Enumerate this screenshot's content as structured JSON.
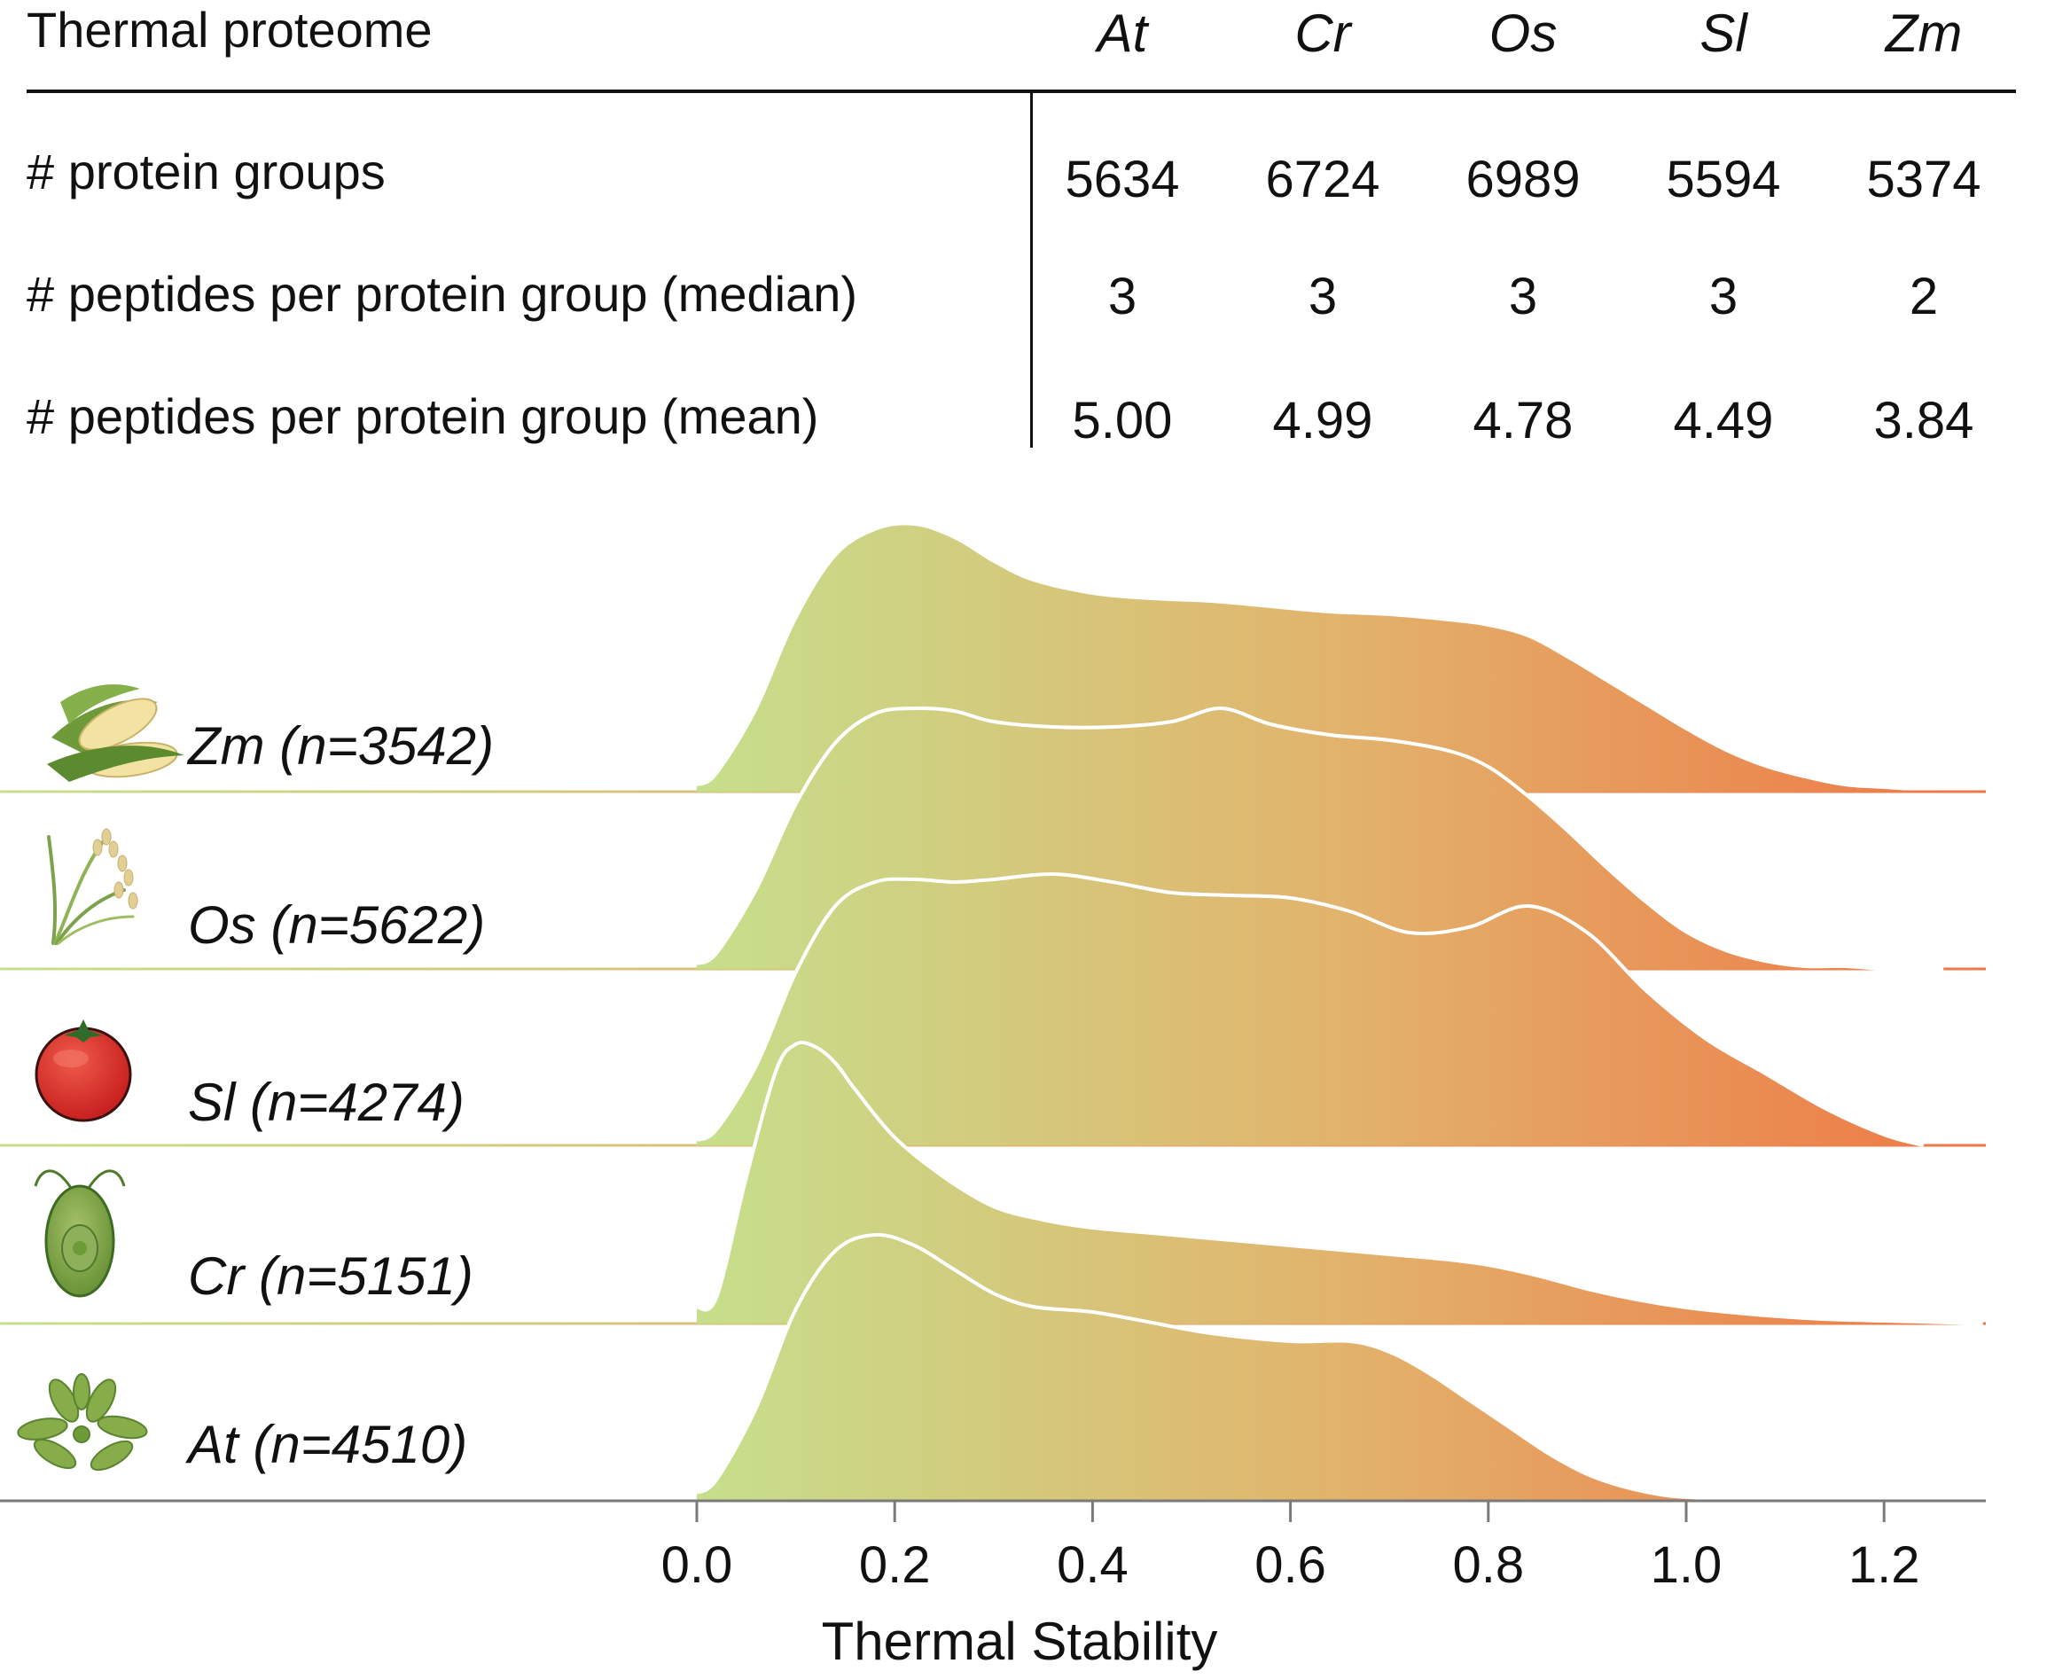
{
  "table": {
    "title": "Thermal proteome",
    "species": [
      "At",
      "Cr",
      "Os",
      "Sl",
      "Zm"
    ],
    "rows": [
      {
        "label": "# protein groups",
        "values": [
          "5634",
          "6724",
          "6989",
          "5594",
          "5374"
        ]
      },
      {
        "label": "# peptides per protein group (median)",
        "values": [
          "3",
          "3",
          "3",
          "3",
          "2"
        ]
      },
      {
        "label": "# peptides per protein group (mean)",
        "values": [
          "5.00",
          "4.99",
          "4.78",
          "4.49",
          "3.84"
        ]
      }
    ]
  },
  "chart_data": {
    "type": "area",
    "subtype": "ridgeline density",
    "xlabel": "Thermal Stability",
    "xlim": [
      0.0,
      1.3
    ],
    "xticks": [
      "0.0",
      "0.2",
      "0.4",
      "0.6",
      "0.8",
      "1.0",
      "1.2"
    ],
    "gradient": {
      "from": "#c6df8c",
      "mid": "#e2b36c",
      "to": "#ee7745"
    },
    "outline_color": "#ffffff",
    "series": [
      {
        "name": "Zm (n=3542)",
        "icon": "corn-icon",
        "x": [
          0.0,
          0.02,
          0.06,
          0.1,
          0.14,
          0.18,
          0.22,
          0.26,
          0.3,
          0.34,
          0.4,
          0.46,
          0.52,
          0.58,
          0.64,
          0.7,
          0.76,
          0.8,
          0.84,
          0.88,
          0.92,
          0.96,
          1.0,
          1.04,
          1.08,
          1.12,
          1.16,
          1.2,
          1.24
        ],
        "y": [
          0.02,
          0.06,
          0.3,
          0.64,
          0.88,
          0.98,
          1.0,
          0.95,
          0.86,
          0.79,
          0.74,
          0.72,
          0.71,
          0.69,
          0.67,
          0.66,
          0.64,
          0.62,
          0.58,
          0.5,
          0.41,
          0.32,
          0.23,
          0.15,
          0.09,
          0.05,
          0.02,
          0.01,
          0.0
        ]
      },
      {
        "name": "Os (n=5622)",
        "icon": "rice-icon",
        "x": [
          0.0,
          0.02,
          0.06,
          0.1,
          0.14,
          0.18,
          0.22,
          0.26,
          0.3,
          0.36,
          0.42,
          0.48,
          0.53,
          0.58,
          0.64,
          0.7,
          0.76,
          0.8,
          0.84,
          0.88,
          0.92,
          0.96,
          1.0,
          1.04,
          1.08,
          1.12,
          1.16,
          1.2,
          1.24,
          1.26
        ],
        "y": [
          0.02,
          0.06,
          0.3,
          0.62,
          0.85,
          0.96,
          0.98,
          0.97,
          0.93,
          0.91,
          0.91,
          0.93,
          0.98,
          0.92,
          0.88,
          0.86,
          0.82,
          0.76,
          0.65,
          0.52,
          0.38,
          0.25,
          0.14,
          0.07,
          0.03,
          0.01,
          0.01,
          0.0,
          0.0,
          0.0
        ]
      },
      {
        "name": "Sl (n=4274)",
        "icon": "tomato-icon",
        "x": [
          0.0,
          0.02,
          0.06,
          0.1,
          0.14,
          0.18,
          0.22,
          0.26,
          0.3,
          0.36,
          0.42,
          0.48,
          0.54,
          0.6,
          0.66,
          0.72,
          0.78,
          0.84,
          0.9,
          0.96,
          1.02,
          1.08,
          1.14,
          1.2,
          1.24
        ],
        "y": [
          0.02,
          0.06,
          0.3,
          0.65,
          0.9,
          0.99,
          1.0,
          0.99,
          1.0,
          1.02,
          0.99,
          0.95,
          0.94,
          0.93,
          0.88,
          0.8,
          0.82,
          0.9,
          0.8,
          0.58,
          0.4,
          0.27,
          0.14,
          0.04,
          0.0
        ]
      },
      {
        "name": "Cr (n=5151)",
        "icon": "chlamydomonas-icon",
        "x": [
          0.0,
          0.02,
          0.05,
          0.08,
          0.1,
          0.12,
          0.14,
          0.16,
          0.2,
          0.25,
          0.3,
          0.35,
          0.4,
          0.46,
          0.52,
          0.58,
          0.64,
          0.7,
          0.76,
          0.8,
          0.85,
          0.9,
          0.95,
          1.0,
          1.05,
          1.1,
          1.15,
          1.2,
          1.25,
          1.3
        ],
        "y": [
          0.06,
          0.1,
          0.55,
          0.95,
          1.05,
          1.04,
          0.98,
          0.88,
          0.7,
          0.55,
          0.44,
          0.39,
          0.36,
          0.34,
          0.32,
          0.3,
          0.28,
          0.26,
          0.24,
          0.22,
          0.18,
          0.13,
          0.09,
          0.06,
          0.04,
          0.025,
          0.015,
          0.01,
          0.005,
          0.0
        ]
      },
      {
        "name": "At (n=4510)",
        "icon": "arabidopsis-icon",
        "x": [
          0.0,
          0.02,
          0.06,
          0.1,
          0.14,
          0.18,
          0.22,
          0.26,
          0.3,
          0.34,
          0.4,
          0.46,
          0.52,
          0.6,
          0.66,
          0.7,
          0.74,
          0.78,
          0.82,
          0.86,
          0.9,
          0.94,
          0.98,
          1.02,
          1.06,
          1.1,
          1.14,
          1.18,
          1.22,
          1.26
        ],
        "y": [
          0.03,
          0.08,
          0.35,
          0.72,
          0.94,
          1.0,
          0.96,
          0.87,
          0.78,
          0.73,
          0.71,
          0.67,
          0.63,
          0.6,
          0.6,
          0.56,
          0.48,
          0.38,
          0.28,
          0.18,
          0.1,
          0.05,
          0.02,
          0.01,
          0.0,
          0.0,
          0.0,
          0.0,
          0.0,
          0.0
        ]
      }
    ]
  }
}
